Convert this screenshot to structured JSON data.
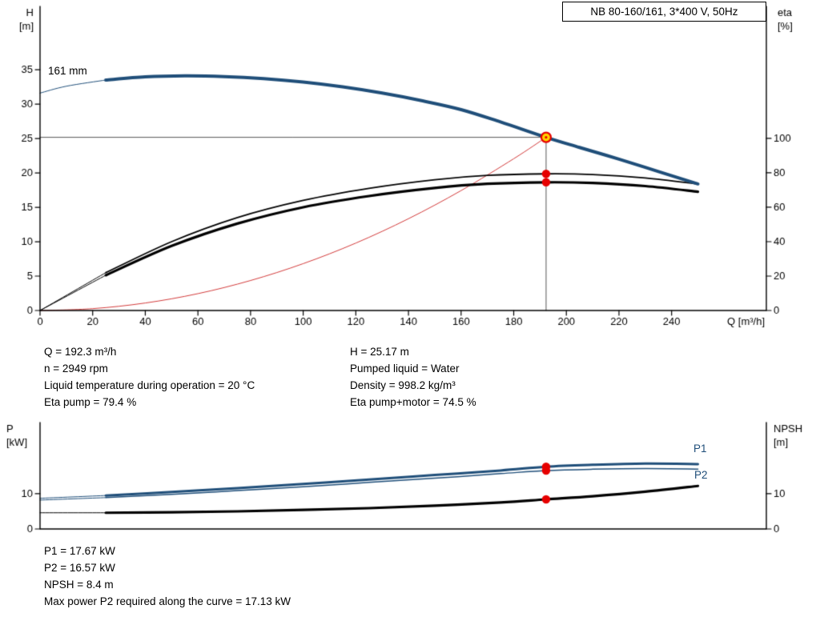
{
  "title_box": "NB 80-160/161, 3*400 V, 50Hz",
  "info": {
    "left": [
      "Q = 192.3 m³/h",
      "n = 2949 rpm",
      "Liquid temperature during operation = 20 °C",
      "Eta pump = 79.4 %"
    ],
    "right": [
      "H = 25.17 m",
      "Pumped liquid = Water",
      "Density = 998.2 kg/m³",
      "Eta pump+motor = 74.5 %"
    ]
  },
  "results": [
    "P1 = 17.67 kW",
    "P2 = 16.57 kW",
    "NPSH = 8.4 m",
    "Max power P2 required along the curve = 17.13 kW"
  ],
  "colors": {
    "curve_blue": "#1f4e79",
    "curve_black": "#000000",
    "system_red": "#d23a3a",
    "dot_red": "#e60000",
    "marker_yellow": "#ffd300",
    "guide_gray": "#555555"
  },
  "chart_data": [
    {
      "type": "line",
      "title": "NB 80-160/161, 3*400 V, 50Hz",
      "xlabel": "Q [m³/h]",
      "x_axis": {
        "lim": [
          0,
          276
        ],
        "ticks": [
          0,
          20,
          40,
          60,
          80,
          100,
          120,
          140,
          160,
          180,
          200,
          220,
          240
        ]
      },
      "left_axis": {
        "label": [
          "H",
          "[m]"
        ],
        "lim": [
          0,
          44.2
        ],
        "ticks": [
          0,
          5,
          10,
          15,
          20,
          25,
          30,
          35
        ]
      },
      "right_axis": {
        "label": [
          "eta",
          "[%]"
        ],
        "lim": [
          0,
          176.7
        ],
        "ticks": [
          0,
          20,
          40,
          60,
          80,
          100
        ]
      },
      "series": [
        {
          "name": "161 mm",
          "role": "head-curve",
          "axis": "left",
          "color": "#1f4e79",
          "width": 4,
          "thin_until": 25,
          "points": [
            [
              0,
              31.6
            ],
            [
              10,
              32.6
            ],
            [
              25,
              33.5
            ],
            [
              40,
              33.95
            ],
            [
              55,
              34.1
            ],
            [
              70,
              34.0
            ],
            [
              85,
              33.7
            ],
            [
              100,
              33.2
            ],
            [
              115,
              32.5
            ],
            [
              130,
              31.6
            ],
            [
              145,
              30.5
            ],
            [
              160,
              29.2
            ],
            [
              175,
              27.4
            ],
            [
              192.3,
              25.17
            ],
            [
              205,
              23.7
            ],
            [
              220,
              22.0
            ],
            [
              235,
              20.2
            ],
            [
              250,
              18.4
            ]
          ]
        },
        {
          "name": "Eta pump",
          "role": "efficiency-pump",
          "axis": "right",
          "color": "#000000",
          "width": 1.8,
          "thin_until": 25,
          "points": [
            [
              0,
              0
            ],
            [
              25,
              22
            ],
            [
              50,
              40
            ],
            [
              75,
              54
            ],
            [
              100,
              64
            ],
            [
              125,
              71
            ],
            [
              150,
              76
            ],
            [
              170,
              78.5
            ],
            [
              192.3,
              79.4
            ],
            [
              210,
              79
            ],
            [
              230,
              77
            ],
            [
              250,
              73.5
            ]
          ]
        },
        {
          "name": "Eta pump+motor",
          "role": "efficiency-pump-motor",
          "axis": "right",
          "color": "#000000",
          "width": 3.2,
          "thin_until": 25,
          "points": [
            [
              0,
              0
            ],
            [
              25,
              20.5
            ],
            [
              50,
              37.5
            ],
            [
              75,
              50.5
            ],
            [
              100,
              60
            ],
            [
              125,
              66.5
            ],
            [
              150,
              71.2
            ],
            [
              170,
              73.6
            ],
            [
              192.3,
              74.5
            ],
            [
              210,
              74.1
            ],
            [
              230,
              72.3
            ],
            [
              250,
              69
            ]
          ]
        },
        {
          "name": "System curve",
          "role": "system-curve",
          "axis": "left",
          "color": "#d23a3a",
          "width": 1,
          "thin_until": 999,
          "points": [
            [
              0,
              0
            ],
            [
              20,
              0.27
            ],
            [
              40,
              1.09
            ],
            [
              60,
              2.45
            ],
            [
              80,
              4.36
            ],
            [
              100,
              6.81
            ],
            [
              120,
              9.8
            ],
            [
              140,
              13.34
            ],
            [
              160,
              17.43
            ],
            [
              180,
              22.06
            ],
            [
              192.3,
              25.17
            ]
          ]
        }
      ],
      "duty_point": {
        "q": 192.3,
        "h": 25.17,
        "marker": "yellow-red-ring"
      },
      "duty_dots": [
        {
          "q": 192.3,
          "v": 79.4,
          "axis": "right"
        },
        {
          "q": 192.3,
          "v": 74.5,
          "axis": "right"
        }
      ],
      "guide_lines": {
        "q_value": 192.3,
        "h_value": 25.17
      }
    },
    {
      "type": "line",
      "title": "",
      "xlabel": "",
      "x_axis": {
        "lim": [
          0,
          276
        ],
        "ticks": []
      },
      "left_axis": {
        "label": [
          "P",
          "[kW]"
        ],
        "lim": [
          0,
          30.2
        ],
        "ticks": [
          0,
          10
        ]
      },
      "right_axis": {
        "label": [
          "NPSH",
          "[m]"
        ],
        "lim": [
          0,
          30.2
        ],
        "ticks": [
          0,
          10
        ]
      },
      "series": [
        {
          "name": "P1",
          "role": "power-input-p1",
          "axis": "left",
          "color": "#1f4e79",
          "width": 3,
          "thin_until": 25,
          "points": [
            [
              0,
              8.7
            ],
            [
              25,
              9.5
            ],
            [
              50,
              10.5
            ],
            [
              75,
              11.6
            ],
            [
              100,
              12.8
            ],
            [
              125,
              14.0
            ],
            [
              150,
              15.3
            ],
            [
              175,
              16.6
            ],
            [
              192.3,
              17.67
            ],
            [
              210,
              18.2
            ],
            [
              230,
              18.55
            ],
            [
              250,
              18.4
            ]
          ]
        },
        {
          "name": "P2",
          "role": "power-shaft-p2",
          "axis": "left",
          "color": "#1f4e79",
          "width": 1.5,
          "thin_until": 25,
          "points": [
            [
              0,
              8.2
            ],
            [
              25,
              8.9
            ],
            [
              50,
              9.8
            ],
            [
              75,
              10.9
            ],
            [
              100,
              12.0
            ],
            [
              125,
              13.2
            ],
            [
              150,
              14.4
            ],
            [
              175,
              15.7
            ],
            [
              192.3,
              16.57
            ],
            [
              210,
              16.95
            ],
            [
              230,
              17.13
            ],
            [
              250,
              17.0
            ]
          ]
        },
        {
          "name": "NPSH",
          "role": "npsh-curve",
          "axis": "left",
          "color": "#000000",
          "width": 3.2,
          "thin_until": 25,
          "points": [
            [
              0,
              4.6
            ],
            [
              25,
              4.6
            ],
            [
              50,
              4.75
            ],
            [
              75,
              5.0
            ],
            [
              100,
              5.4
            ],
            [
              125,
              5.9
            ],
            [
              150,
              6.6
            ],
            [
              175,
              7.5
            ],
            [
              192.3,
              8.4
            ],
            [
              210,
              9.3
            ],
            [
              230,
              10.6
            ],
            [
              250,
              12.2
            ]
          ]
        }
      ],
      "duty_dots": [
        {
          "q": 192.3,
          "v": 17.67,
          "axis": "left"
        },
        {
          "q": 192.3,
          "v": 16.57,
          "axis": "left"
        },
        {
          "q": 192.3,
          "v": 8.4,
          "axis": "left"
        }
      ]
    }
  ]
}
